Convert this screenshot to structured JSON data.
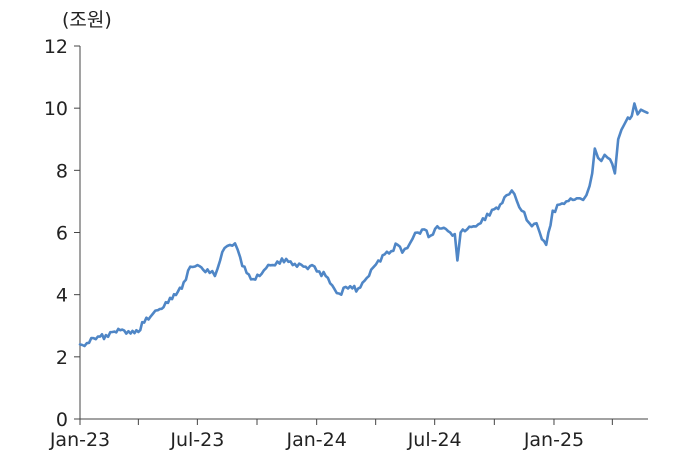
{
  "chart_data": {
    "type": "line",
    "title": "",
    "ylabel": "(조원)",
    "xlabel": "",
    "ylim": [
      0,
      12
    ],
    "yticks": [
      0,
      2,
      4,
      6,
      8,
      10,
      12
    ],
    "xlim": [
      "2023-01-01",
      "2025-05-26"
    ],
    "xtick_dates": [
      "2023-01-01",
      "2023-04-01",
      "2023-07-01",
      "2023-10-01",
      "2024-01-01",
      "2024-04-01",
      "2024-07-01",
      "2024-10-01",
      "2025-01-01",
      "2025-04-01"
    ],
    "xtick_labels": [
      "Jan-23",
      "",
      "Jul-23",
      "",
      "Jan-24",
      "",
      "Jul-24",
      "",
      "Jan-25",
      ""
    ],
    "grid": false,
    "legend": "none",
    "series": [
      {
        "color": "#4f86c6",
        "x": [
          "2023-01-01",
          "2023-01-08",
          "2023-01-15",
          "2023-01-22",
          "2023-02-01",
          "2023-02-10",
          "2023-02-20",
          "2023-03-01",
          "2023-03-10",
          "2023-03-20",
          "2023-04-01",
          "2023-04-10",
          "2023-04-20",
          "2023-05-01",
          "2023-05-10",
          "2023-05-20",
          "2023-06-01",
          "2023-06-10",
          "2023-06-20",
          "2023-07-01",
          "2023-07-10",
          "2023-07-20",
          "2023-07-28",
          "2023-08-05",
          "2023-08-12",
          "2023-08-20",
          "2023-08-28",
          "2023-09-05",
          "2023-09-15",
          "2023-09-25",
          "2023-10-05",
          "2023-10-15",
          "2023-10-25",
          "2023-11-05",
          "2023-11-15",
          "2023-11-25",
          "2023-12-05",
          "2023-12-15",
          "2023-12-25",
          "2024-01-05",
          "2024-01-15",
          "2024-01-25",
          "2024-02-01",
          "2024-02-08",
          "2024-02-15",
          "2024-02-25",
          "2024-03-05",
          "2024-03-15",
          "2024-03-25",
          "2024-04-05",
          "2024-04-15",
          "2024-04-25",
          "2024-05-05",
          "2024-05-12",
          "2024-05-20",
          "2024-05-28",
          "2024-06-05",
          "2024-06-15",
          "2024-06-25",
          "2024-07-05",
          "2024-07-15",
          "2024-07-25",
          "2024-08-01",
          "2024-08-05",
          "2024-08-10",
          "2024-08-20",
          "2024-08-30",
          "2024-09-10",
          "2024-09-20",
          "2024-10-01",
          "2024-10-10",
          "2024-10-20",
          "2024-10-28",
          "2024-11-05",
          "2024-11-12",
          "2024-11-20",
          "2024-11-28",
          "2024-12-05",
          "2024-12-10",
          "2024-12-20",
          "2024-12-30",
          "2025-01-10",
          "2025-01-20",
          "2025-01-30",
          "2025-02-05",
          "2025-02-10",
          "2025-02-15",
          "2025-02-20",
          "2025-02-25",
          "2025-03-01",
          "2025-03-05",
          "2025-03-10",
          "2025-03-15",
          "2025-03-20",
          "2025-03-25",
          "2025-04-01",
          "2025-04-05",
          "2025-04-10",
          "2025-04-15",
          "2025-04-20",
          "2025-04-25",
          "2025-05-01",
          "2025-05-05",
          "2025-05-10",
          "2025-05-15",
          "2025-05-20",
          "2025-05-25"
        ],
        "values": [
          2.4,
          2.35,
          2.45,
          2.6,
          2.65,
          2.7,
          2.8,
          2.9,
          2.85,
          2.75,
          2.8,
          3.1,
          3.3,
          3.5,
          3.6,
          3.9,
          4.1,
          4.4,
          4.9,
          4.95,
          4.8,
          4.7,
          4.6,
          5.1,
          5.5,
          5.6,
          5.65,
          5.2,
          4.7,
          4.5,
          4.6,
          4.85,
          4.95,
          5.0,
          5.15,
          4.95,
          5.0,
          4.9,
          4.95,
          4.75,
          4.6,
          4.3,
          4.05,
          4.0,
          4.25,
          4.2,
          4.2,
          4.45,
          4.8,
          5.1,
          5.3,
          5.4,
          5.6,
          5.35,
          5.5,
          5.8,
          6.0,
          6.1,
          5.9,
          6.2,
          6.15,
          6.0,
          5.95,
          5.1,
          6.0,
          6.1,
          6.2,
          6.3,
          6.6,
          6.75,
          6.9,
          7.2,
          7.35,
          7.0,
          6.7,
          6.4,
          6.2,
          6.3,
          6.0,
          5.6,
          6.7,
          6.9,
          7.0,
          7.05,
          7.1,
          7.1,
          7.05,
          7.2,
          7.5,
          7.9,
          8.7,
          8.4,
          8.3,
          8.5,
          8.4,
          8.2,
          7.9,
          9.0,
          9.3,
          9.5,
          9.7,
          9.75,
          10.15,
          9.8,
          9.95,
          9.9,
          9.85
        ]
      }
    ]
  }
}
